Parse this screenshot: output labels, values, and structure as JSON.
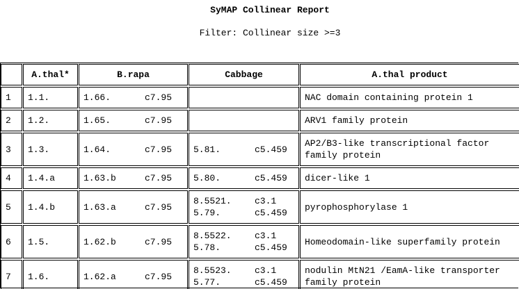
{
  "header": {
    "title": "SyMAP Collinear Report",
    "filter": "Filter: Collinear size >=3"
  },
  "table": {
    "columns": [
      "A.thal*",
      "B.rapa",
      "Cabbage",
      "A.thal product"
    ],
    "rows": [
      {
        "num": "1",
        "athal": "1.1.",
        "brapa": [
          [
            "1.66.",
            "c7.95"
          ]
        ],
        "cabbage": [],
        "product": "NAC domain containing protein 1"
      },
      {
        "num": "2",
        "athal": "1.2.",
        "brapa": [
          [
            "1.65.",
            "c7.95"
          ]
        ],
        "cabbage": [],
        "product": "ARV1 family protein"
      },
      {
        "num": "3",
        "athal": "1.3.",
        "brapa": [
          [
            "1.64.",
            "c7.95"
          ]
        ],
        "cabbage": [
          [
            "5.81.",
            "c5.459"
          ]
        ],
        "product": "AP2/B3-like transcriptional factor family protein"
      },
      {
        "num": "4",
        "athal": "1.4.a",
        "brapa": [
          [
            "1.63.b",
            "c7.95"
          ]
        ],
        "cabbage": [
          [
            "5.80.",
            "c5.459"
          ]
        ],
        "product": "dicer-like 1"
      },
      {
        "num": "5",
        "athal": "1.4.b",
        "brapa": [
          [
            "1.63.a",
            "c7.95"
          ]
        ],
        "cabbage": [
          [
            "8.5521.",
            "c3.1"
          ],
          [
            "5.79.",
            "c5.459"
          ]
        ],
        "product": "pyrophosphorylase 1"
      },
      {
        "num": "6",
        "athal": "1.5.",
        "brapa": [
          [
            "1.62.b",
            "c7.95"
          ]
        ],
        "cabbage": [
          [
            "8.5522.",
            "c3.1"
          ],
          [
            "5.78.",
            "c5.459"
          ]
        ],
        "product": "Homeodomain-like superfamily protein"
      },
      {
        "num": "7",
        "athal": "1.6.",
        "brapa": [
          [
            "1.62.a",
            "c7.95"
          ]
        ],
        "cabbage": [
          [
            "8.5523.",
            "c3.1"
          ],
          [
            "5.77.",
            "c5.459"
          ]
        ],
        "product": "nodulin MtN21 /EamA-like transporter family protein"
      }
    ]
  }
}
